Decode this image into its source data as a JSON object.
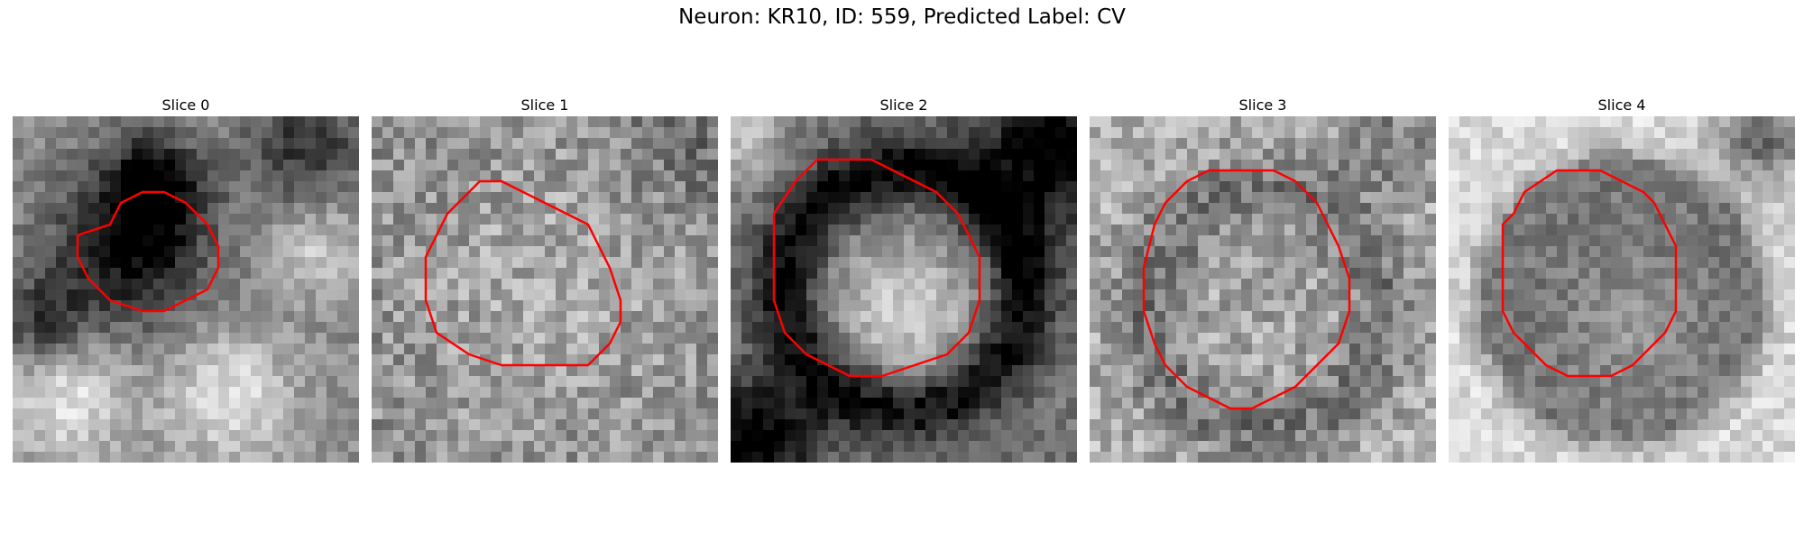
{
  "figure": {
    "title": "Neuron: KR10, ID: 559, Predicted Label: CV"
  },
  "colors": {
    "contour": "#ff0000",
    "background": "#ffffff"
  },
  "panels": [
    {
      "title": "Slice 0"
    },
    {
      "title": "Slice 1"
    },
    {
      "title": "Slice 2"
    },
    {
      "title": "Slice 3"
    },
    {
      "title": "Slice 4"
    }
  ]
}
